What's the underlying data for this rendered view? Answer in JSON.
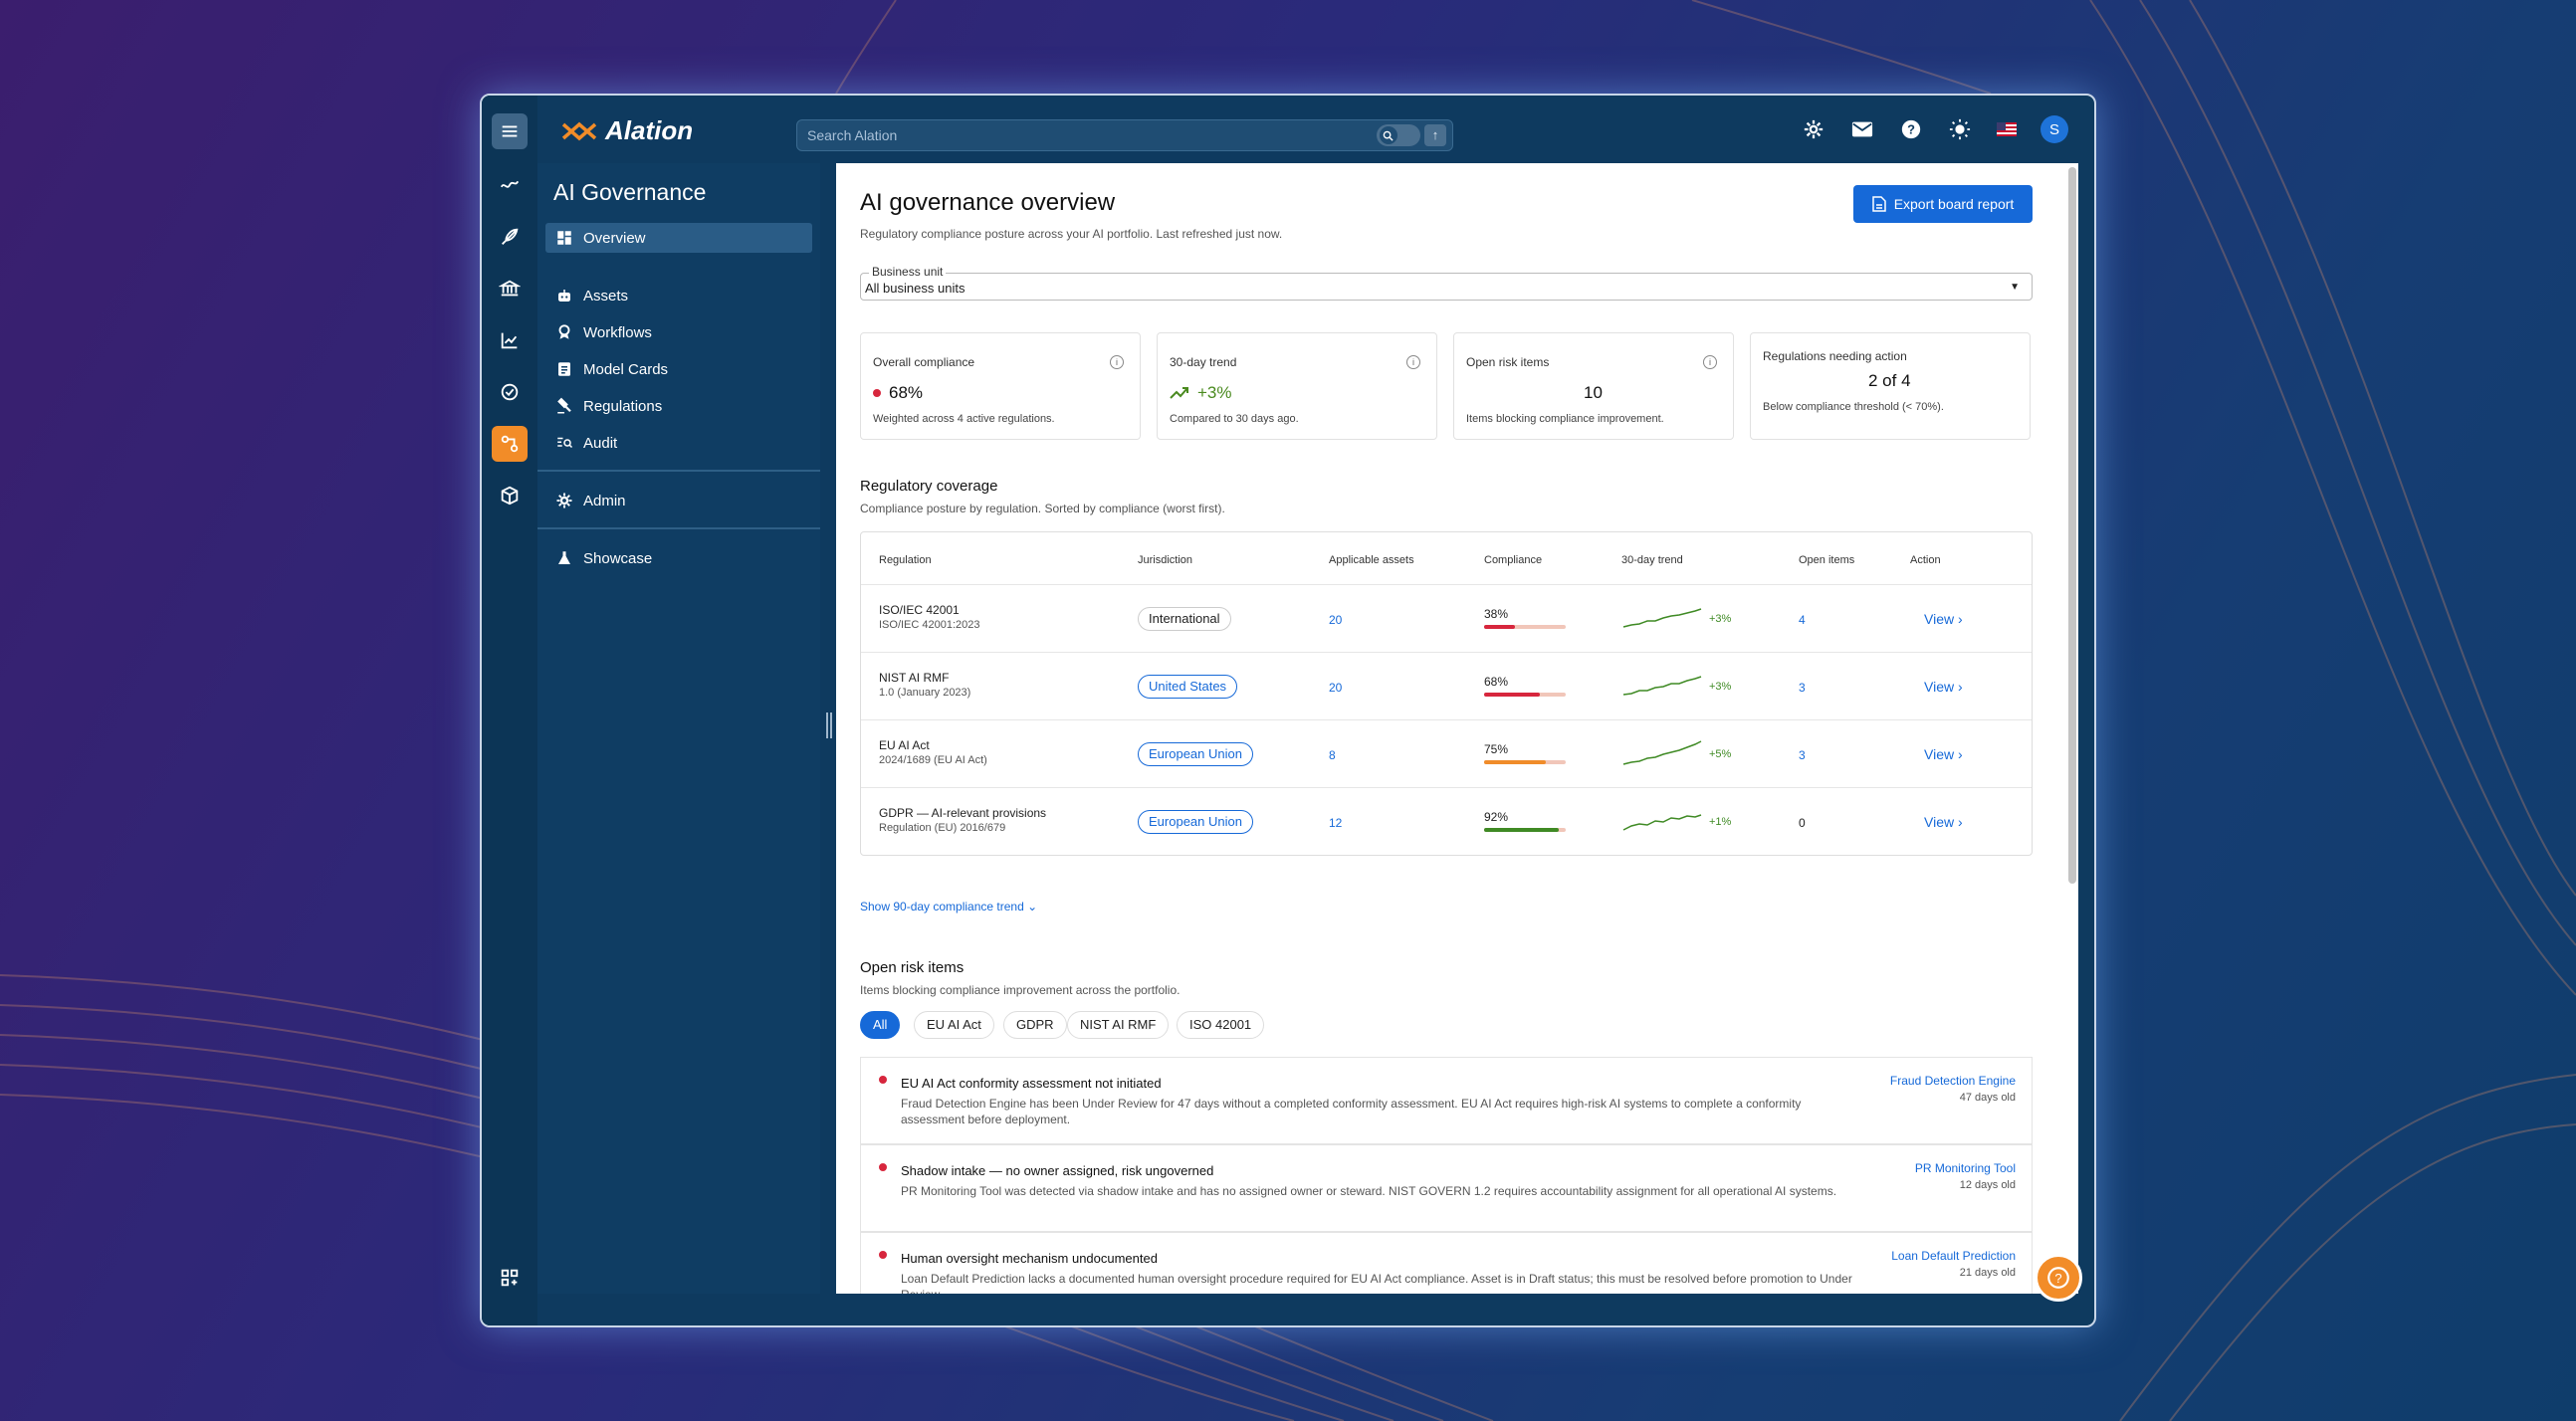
{
  "app": {
    "brand": "Alation",
    "search_placeholder": "Search Alation",
    "avatar_initial": "S"
  },
  "sidebar": {
    "title": "AI Governance",
    "items": [
      {
        "label": "Overview",
        "icon": "dashboard-icon"
      },
      {
        "label": "Assets",
        "icon": "robot-icon"
      },
      {
        "label": "Workflows",
        "icon": "badge-icon"
      },
      {
        "label": "Model Cards",
        "icon": "clipboard-icon"
      },
      {
        "label": "Regulations",
        "icon": "gavel-icon"
      },
      {
        "label": "Audit",
        "icon": "search-list-icon"
      },
      {
        "label": "Admin",
        "icon": "gear-icon"
      },
      {
        "label": "Showcase",
        "icon": "flask-icon"
      }
    ]
  },
  "main": {
    "title": "AI governance overview",
    "subtitle": "Regulatory compliance posture across your AI portfolio. Last refreshed just now.",
    "export_label": "Export board report",
    "business_unit": {
      "label": "Business unit",
      "value": "All business units"
    },
    "cards": [
      {
        "title": "Overall compliance",
        "value": "68%",
        "desc": "Weighted across 4 active regulations."
      },
      {
        "title": "30-day trend",
        "value": "+3%",
        "desc": "Compared to 30 days ago."
      },
      {
        "title": "Open risk items",
        "value": "10",
        "desc": "Items blocking compliance improvement."
      },
      {
        "title": "Regulations needing action",
        "value": "2 of 4",
        "desc": "Below compliance threshold (< 70%)."
      }
    ],
    "coverage": {
      "title": "Regulatory coverage",
      "subtitle": "Compliance posture by regulation. Sorted by compliance (worst first).",
      "headers": [
        "Regulation",
        "Jurisdiction",
        "Applicable assets",
        "Compliance",
        "30-day trend",
        "Open items",
        "Action"
      ],
      "rows": [
        {
          "name": "ISO/IEC 42001",
          "sub": "ISO/IEC 42001:2023",
          "jurisdiction": "International",
          "assets": "20",
          "compliance": "38%",
          "pct": 38,
          "trend": "+3%",
          "open": "4",
          "action": "View"
        },
        {
          "name": "NIST AI RMF",
          "sub": "1.0 (January 2023)",
          "jurisdiction": "United States",
          "assets": "20",
          "compliance": "68%",
          "pct": 68,
          "trend": "+3%",
          "open": "3",
          "action": "View"
        },
        {
          "name": "EU AI Act",
          "sub": "2024/1689 (EU AI Act)",
          "jurisdiction": "European Union",
          "assets": "8",
          "compliance": "75%",
          "pct": 75,
          "trend": "+5%",
          "open": "3",
          "action": "View"
        },
        {
          "name": "GDPR — AI-relevant provisions",
          "sub": "Regulation (EU) 2016/679",
          "jurisdiction": "European Union",
          "assets": "12",
          "compliance": "92%",
          "pct": 92,
          "trend": "+1%",
          "open": "0",
          "action": "View"
        }
      ],
      "show_trend": "Show 90-day compliance trend"
    },
    "risks": {
      "title": "Open risk items",
      "subtitle": "Items blocking compliance improvement across the portfolio.",
      "filters": [
        "All",
        "EU AI Act",
        "GDPR",
        "NIST AI RMF",
        "ISO 42001"
      ],
      "items": [
        {
          "title": "EU AI Act conformity assessment not initiated",
          "body": "Fraud Detection Engine has been Under Review for 47 days without a completed conformity assessment. EU AI Act requires high-risk AI systems to complete a conformity assessment before deployment.",
          "asset": "Fraud Detection Engine",
          "age": "47 days old"
        },
        {
          "title": "Shadow intake — no owner assigned, risk ungoverned",
          "body": "PR Monitoring Tool was detected via shadow intake and has no assigned owner or steward. NIST GOVERN 1.2 requires accountability assignment for all operational AI systems.",
          "asset": "PR Monitoring Tool",
          "age": "12 days old"
        },
        {
          "title": "Human oversight mechanism undocumented",
          "body": "Loan Default Prediction lacks a documented human oversight procedure required for EU AI Act compliance. Asset is in Draft status; this must be resolved before promotion to Under Review.",
          "asset": "Loan Default Prediction",
          "age": "21 days old"
        }
      ]
    }
  }
}
